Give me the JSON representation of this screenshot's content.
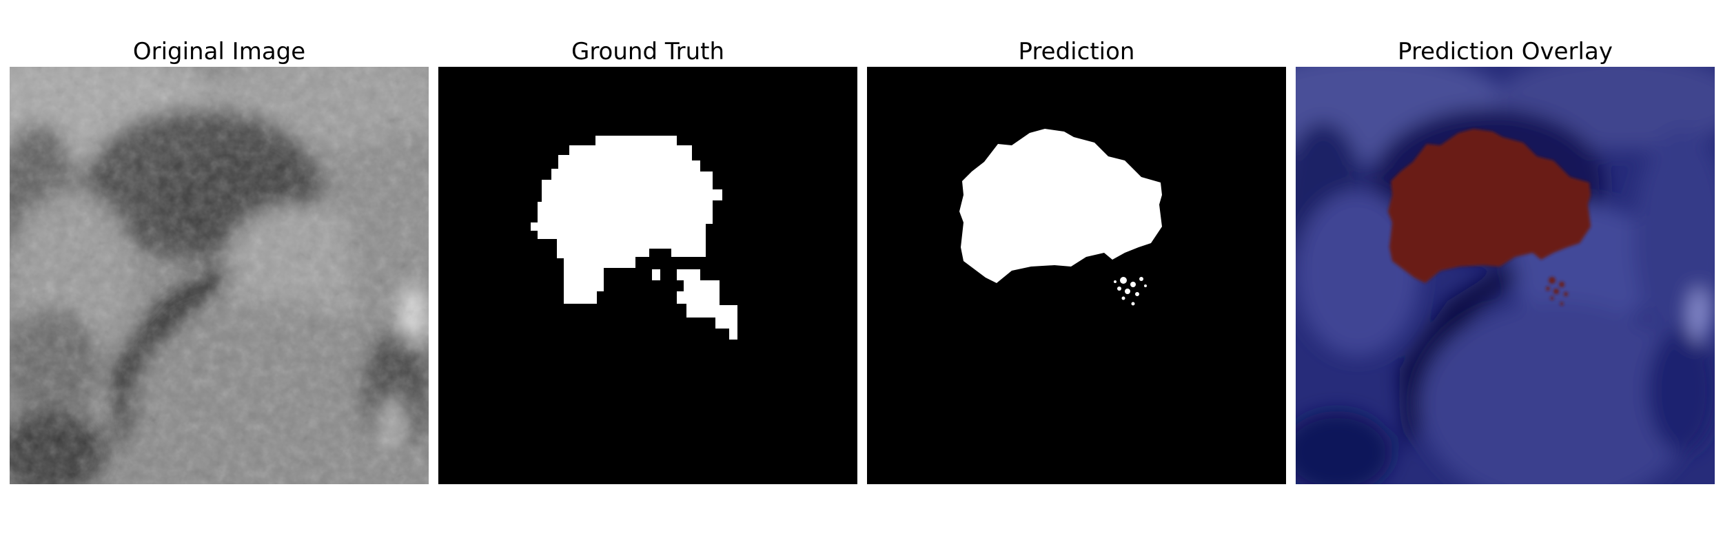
{
  "panels": [
    {
      "title": "Original Image"
    },
    {
      "title": "Ground Truth"
    },
    {
      "title": "Prediction"
    },
    {
      "title": "Prediction Overlay"
    }
  ],
  "colors": {
    "background": "#ffffff",
    "mask_background": "#000000",
    "mask_foreground": "#ffffff",
    "overlay_base": "#1b1f66",
    "overlay_highlight": "#7a2010"
  }
}
